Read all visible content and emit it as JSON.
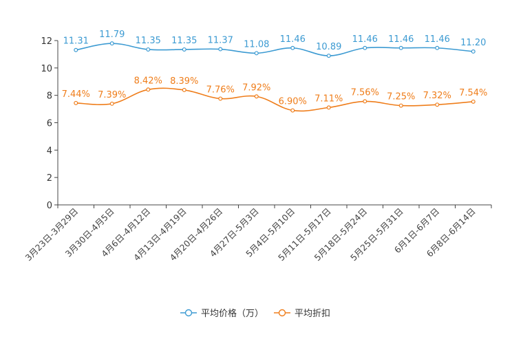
{
  "chart_data": {
    "type": "line",
    "categories": [
      "3月23日-3月29日",
      "3月30日-4月5日",
      "4月6日-4月12日",
      "4月13日-4月19日",
      "4月20日-4月26日",
      "4月27日-5月3日",
      "5月4日-5月10日",
      "5月11日-5月17日",
      "5月18日-5月24日",
      "5月25日-5月31日",
      "6月1日-6月7日",
      "6月8日-6月14日"
    ],
    "ylim": [
      0,
      12
    ],
    "yticks": [
      0,
      2,
      4,
      6,
      8,
      10,
      12
    ],
    "grid": false,
    "legend_position": "bottom-center",
    "series": [
      {
        "name": "平均价格（万）",
        "color": "#3b9ad2",
        "values": [
          11.31,
          11.79,
          11.35,
          11.35,
          11.37,
          11.08,
          11.46,
          10.89,
          11.46,
          11.46,
          11.46,
          11.2
        ],
        "labels": [
          "11.31",
          "11.79",
          "11.35",
          "11.35",
          "11.37",
          "11.08",
          "11.46",
          "10.89",
          "11.46",
          "11.46",
          "11.46",
          "11.20"
        ]
      },
      {
        "name": "平均折扣",
        "color": "#ef7d1a",
        "values": [
          7.44,
          7.39,
          8.42,
          8.39,
          7.76,
          7.92,
          6.9,
          7.11,
          7.56,
          7.25,
          7.32,
          7.54
        ],
        "labels": [
          "7.44%",
          "7.39%",
          "8.42%",
          "8.39%",
          "7.76%",
          "7.92%",
          "6.90%",
          "7.11%",
          "7.56%",
          "7.25%",
          "7.32%",
          "7.54%"
        ]
      }
    ]
  }
}
